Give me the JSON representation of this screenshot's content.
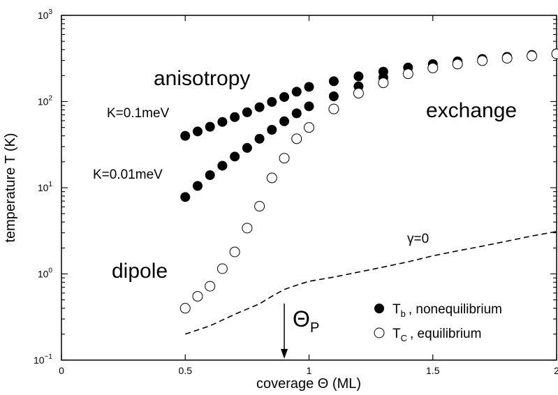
{
  "chart_data": {
    "type": "scatter",
    "xlabel": "coverage Θ (ML)",
    "ylabel": "temperature T (K)",
    "xlim": [
      0,
      2
    ],
    "ylim": [
      0.1,
      1000
    ],
    "yscale": "log",
    "grid": false,
    "legend_position": "bottom-right",
    "x_ticks": [
      {
        "value": 0,
        "label": "0"
      },
      {
        "value": 0.5,
        "label": "0.5"
      },
      {
        "value": 1,
        "label": "1"
      },
      {
        "value": 1.5,
        "label": "1.5"
      },
      {
        "value": 2,
        "label": "2"
      }
    ],
    "y_ticks": [
      {
        "value": 0.1,
        "base": "10",
        "exp": "−1"
      },
      {
        "value": 1,
        "base": "10",
        "exp": "0"
      },
      {
        "value": 10,
        "base": "10",
        "exp": "1"
      },
      {
        "value": 100,
        "base": "10",
        "exp": "2"
      },
      {
        "value": 1000,
        "base": "10",
        "exp": "3"
      }
    ],
    "series": [
      {
        "legend_symbol": "T",
        "legend_subscript": "b",
        "legend_text": ", nonequilibrium",
        "marker": "filled-circle",
        "points": [
          [
            0.5,
            40
          ],
          [
            0.55,
            45
          ],
          [
            0.6,
            51
          ],
          [
            0.65,
            58
          ],
          [
            0.7,
            66
          ],
          [
            0.75,
            75
          ],
          [
            0.8,
            86
          ],
          [
            0.85,
            99
          ],
          [
            0.9,
            113
          ],
          [
            0.95,
            130
          ],
          [
            1.0,
            148
          ],
          [
            1.1,
            172
          ],
          [
            1.2,
            196
          ],
          [
            1.3,
            222
          ],
          [
            1.4,
            248
          ],
          [
            1.5,
            272
          ],
          [
            1.6,
            292
          ],
          [
            1.7,
            312
          ],
          [
            1.8,
            330
          ],
          [
            1.9,
            347
          ],
          [
            2.0,
            362
          ]
        ]
      },
      {
        "marker": "filled-circle",
        "points": [
          [
            0.5,
            7.8
          ],
          [
            0.55,
            10.5
          ],
          [
            0.6,
            14
          ],
          [
            0.65,
            18
          ],
          [
            0.7,
            23
          ],
          [
            0.75,
            29
          ],
          [
            0.8,
            37
          ],
          [
            0.85,
            47
          ],
          [
            0.9,
            59
          ],
          [
            0.95,
            73
          ],
          [
            1.0,
            88
          ],
          [
            1.1,
            115
          ],
          [
            1.2,
            150
          ],
          [
            1.3,
            190
          ]
        ]
      },
      {
        "legend_symbol": "T",
        "legend_subscript": "C",
        "legend_text": ", equilibrium",
        "marker": "open-circle",
        "points": [
          [
            0.5,
            0.4
          ],
          [
            0.55,
            0.55
          ],
          [
            0.6,
            0.72
          ],
          [
            0.65,
            1.15
          ],
          [
            0.7,
            1.8
          ],
          [
            0.75,
            3.4
          ],
          [
            0.8,
            6.1
          ],
          [
            0.85,
            13
          ],
          [
            0.9,
            22
          ],
          [
            0.95,
            37
          ],
          [
            1.0,
            50
          ],
          [
            1.1,
            82
          ],
          [
            1.2,
            125
          ],
          [
            1.3,
            165
          ],
          [
            1.4,
            210
          ],
          [
            1.5,
            245
          ],
          [
            1.6,
            272
          ],
          [
            1.7,
            298
          ],
          [
            1.8,
            318
          ],
          [
            1.9,
            338
          ],
          [
            2.0,
            358
          ]
        ]
      },
      {
        "marker": "dashed-line",
        "points": [
          [
            0.5,
            0.2
          ],
          [
            0.6,
            0.25
          ],
          [
            0.7,
            0.34
          ],
          [
            0.8,
            0.45
          ],
          [
            0.85,
            0.55
          ],
          [
            0.9,
            0.66
          ],
          [
            0.95,
            0.74
          ],
          [
            1.0,
            0.82
          ],
          [
            1.1,
            0.92
          ],
          [
            1.2,
            1.05
          ],
          [
            1.3,
            1.2
          ],
          [
            1.4,
            1.38
          ],
          [
            1.5,
            1.62
          ],
          [
            1.6,
            1.85
          ],
          [
            1.7,
            2.1
          ],
          [
            1.8,
            2.4
          ],
          [
            1.9,
            2.75
          ],
          [
            2.0,
            3.1
          ]
        ]
      }
    ],
    "annotations": {
      "anisotropy": "anisotropy",
      "exchange": "exchange",
      "dipole": "dipole",
      "k_high": "K=0.1meV",
      "k_low": "K=0.01meV",
      "gamma": "γ=0",
      "theta_p_symbol": "Θ",
      "theta_p_subscript": "P",
      "theta_p_x": 0.9
    }
  }
}
